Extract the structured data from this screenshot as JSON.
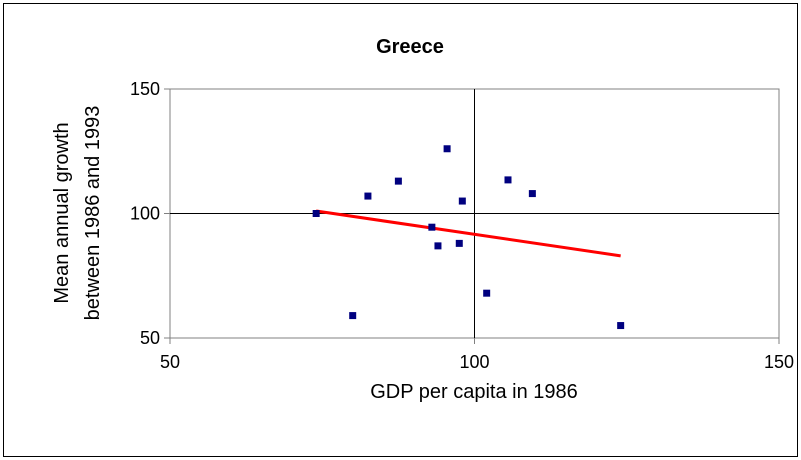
{
  "chart_data": {
    "type": "scatter",
    "title": "Greece",
    "xlabel": "GDP per capita in 1986",
    "ylabel_lines": [
      "Mean annual growth",
      "between 1986 and 1993"
    ],
    "xlim": [
      50,
      150
    ],
    "ylim": [
      50,
      150
    ],
    "xticks": [
      50,
      100,
      150
    ],
    "yticks": [
      50,
      100,
      150
    ],
    "x_tick_labels": [
      "50",
      "100",
      "150"
    ],
    "y_tick_labels": [
      "50",
      "100",
      "150"
    ],
    "grid": "major gridlines at 100 on both axes",
    "points": [
      {
        "x": 74,
        "y": 100
      },
      {
        "x": 80,
        "y": 59
      },
      {
        "x": 82.5,
        "y": 107
      },
      {
        "x": 87.5,
        "y": 113
      },
      {
        "x": 93,
        "y": 94.5
      },
      {
        "x": 94,
        "y": 87
      },
      {
        "x": 95.5,
        "y": 126
      },
      {
        "x": 97.5,
        "y": 88
      },
      {
        "x": 98,
        "y": 105
      },
      {
        "x": 102,
        "y": 68
      },
      {
        "x": 105.5,
        "y": 113.5
      },
      {
        "x": 109.5,
        "y": 108
      },
      {
        "x": 124,
        "y": 55
      }
    ],
    "trendline": {
      "x": [
        74,
        124
      ],
      "y": [
        101,
        83
      ]
    },
    "colors": {
      "points": "#00007f",
      "trendline": "#ff0000",
      "grid": "#000000",
      "axis": "#808080"
    }
  }
}
